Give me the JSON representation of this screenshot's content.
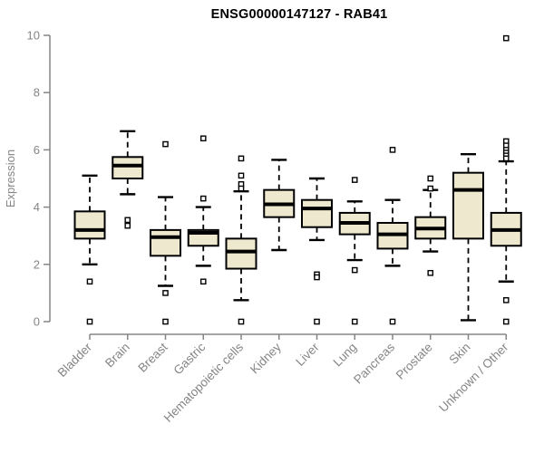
{
  "chart_data": {
    "type": "boxplot",
    "title": "ENSG00000147127 - RAB41",
    "xlabel": "",
    "ylabel": "Expression",
    "ylim": [
      0,
      10
    ],
    "yticks": [
      0,
      2,
      4,
      6,
      8,
      10
    ],
    "grid": false,
    "legend": "none",
    "axis_color": "#858585",
    "title_color": "#000000",
    "box_fill_color": "#EDE8CE",
    "box_border_color": "#000000",
    "median_color": "#000000",
    "outlier_shape": "open-square",
    "categories": [
      "Bladder",
      "Brain",
      "Breast",
      "Gastric",
      "Hematopoietic cells",
      "Kidney",
      "Liver",
      "Lung",
      "Pancreas",
      "Prostate",
      "Skin",
      "Unknown / Other"
    ],
    "series": [
      {
        "label": "Bladder",
        "whisker_low": 2.0,
        "q1": 2.9,
        "median": 3.2,
        "q3": 3.85,
        "whisker_high": 5.1,
        "outliers": [
          1.4,
          0.0
        ]
      },
      {
        "label": "Brain",
        "whisker_low": 4.45,
        "q1": 5.0,
        "median": 5.45,
        "q3": 5.75,
        "whisker_high": 6.65,
        "outliers": [
          3.55,
          3.35
        ]
      },
      {
        "label": "Breast",
        "whisker_low": 1.25,
        "q1": 2.3,
        "median": 2.95,
        "q3": 3.2,
        "whisker_high": 4.35,
        "outliers": [
          6.2,
          1.0,
          0.0
        ]
      },
      {
        "label": "Gastric",
        "whisker_low": 1.95,
        "q1": 2.65,
        "median": 3.1,
        "q3": 3.2,
        "whisker_high": 4.0,
        "outliers": [
          6.4,
          4.3,
          1.4
        ]
      },
      {
        "label": "Hematopoietic cells",
        "whisker_low": 0.75,
        "q1": 1.85,
        "median": 2.45,
        "q3": 2.9,
        "whisker_high": 4.55,
        "outliers": [
          5.7,
          5.1,
          4.8,
          4.65,
          0.0
        ]
      },
      {
        "label": "Kidney",
        "whisker_low": 2.5,
        "q1": 3.65,
        "median": 4.1,
        "q3": 4.6,
        "whisker_high": 5.65,
        "outliers": []
      },
      {
        "label": "Liver",
        "whisker_low": 2.85,
        "q1": 3.3,
        "median": 3.95,
        "q3": 4.25,
        "whisker_high": 5.0,
        "outliers": [
          1.65,
          1.55,
          0.0
        ]
      },
      {
        "label": "Lung",
        "whisker_low": 2.15,
        "q1": 3.05,
        "median": 3.45,
        "q3": 3.8,
        "whisker_high": 4.2,
        "outliers": [
          4.95,
          1.8,
          0.0
        ]
      },
      {
        "label": "Pancreas",
        "whisker_low": 1.95,
        "q1": 2.55,
        "median": 3.05,
        "q3": 3.45,
        "whisker_high": 4.25,
        "outliers": [
          6.0,
          0.0
        ]
      },
      {
        "label": "Prostate",
        "whisker_low": 2.45,
        "q1": 2.9,
        "median": 3.25,
        "q3": 3.65,
        "whisker_high": 4.6,
        "outliers": [
          5.0,
          4.65,
          1.7
        ]
      },
      {
        "label": "Skin",
        "whisker_low": 0.05,
        "q1": 2.9,
        "median": 4.6,
        "q3": 5.2,
        "whisker_high": 5.85,
        "outliers": []
      },
      {
        "label": "Unknown / Other",
        "whisker_low": 1.4,
        "q1": 2.65,
        "median": 3.2,
        "q3": 3.8,
        "whisker_high": 5.6,
        "outliers": [
          9.9,
          6.3,
          6.15,
          6.0,
          5.9,
          5.8,
          5.7,
          0.75,
          0.0
        ]
      }
    ]
  }
}
